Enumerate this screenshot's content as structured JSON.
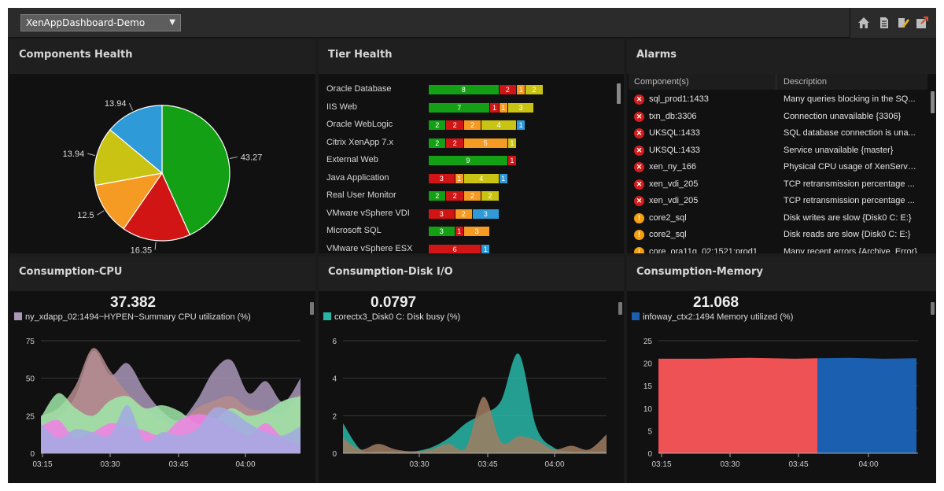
{
  "header": {
    "dashboard_select": "XenAppDashboard-Demo"
  },
  "toolbar": {
    "icons": [
      "home-icon",
      "document-icon",
      "edit-icon",
      "export-icon"
    ]
  },
  "components_health": {
    "title": "Components Health",
    "chart_data": {
      "type": "pie",
      "slices": [
        {
          "value": 43.27,
          "label": "43.27",
          "color": "#14a014"
        },
        {
          "value": 16.35,
          "label": "16.35",
          "color": "#d11414"
        },
        {
          "value": 12.5,
          "label": "12.5",
          "color": "#f59a22"
        },
        {
          "value": 13.94,
          "label": "13.94",
          "color": "#c9c414"
        },
        {
          "value": 13.94,
          "label": "13.94",
          "color": "#2f9ad8"
        }
      ]
    }
  },
  "tier_health": {
    "title": "Tier Health",
    "colors": {
      "green": "#14a014",
      "red": "#d11414",
      "orange": "#f59a22",
      "yellow": "#c9c414",
      "blue": "#2f9ad8"
    },
    "chart_data": {
      "type": "bar",
      "stacked": true,
      "categories": [
        "Oracle Database",
        "IIS Web",
        "Oracle WebLogic",
        "Citrix XenApp 7.x",
        "External Web",
        "Java Application",
        "Real User Monitor",
        "VMware vSphere VDI",
        "Microsoft SQL",
        "VMware vSphere ESX"
      ],
      "rows": [
        [
          [
            "green",
            8
          ],
          [
            "red",
            2
          ],
          [
            "orange",
            1
          ],
          [
            "yellow",
            2
          ]
        ],
        [
          [
            "green",
            7
          ],
          [
            "red",
            1
          ],
          [
            "orange",
            1
          ],
          [
            "yellow",
            3
          ]
        ],
        [
          [
            "green",
            2
          ],
          [
            "red",
            2
          ],
          [
            "orange",
            2
          ],
          [
            "yellow",
            4
          ],
          [
            "blue",
            1
          ]
        ],
        [
          [
            "green",
            2
          ],
          [
            "red",
            2
          ],
          [
            "orange",
            5
          ],
          [
            "yellow",
            1
          ]
        ],
        [
          [
            "green",
            9
          ],
          [
            "red",
            1
          ]
        ],
        [
          [
            "red",
            3
          ],
          [
            "orange",
            1
          ],
          [
            "yellow",
            4
          ],
          [
            "blue",
            1
          ]
        ],
        [
          [
            "green",
            2
          ],
          [
            "red",
            2
          ],
          [
            "orange",
            2
          ],
          [
            "yellow",
            2
          ]
        ],
        [
          [
            "red",
            3
          ],
          [
            "orange",
            2
          ],
          [
            "blue",
            3
          ]
        ],
        [
          [
            "green",
            3
          ],
          [
            "red",
            1
          ],
          [
            "orange",
            3
          ]
        ],
        [
          [
            "red",
            6
          ],
          [
            "blue",
            1
          ]
        ]
      ]
    }
  },
  "alarms": {
    "title": "Alarms",
    "columns": [
      "Component(s)",
      "Description"
    ],
    "rows": [
      {
        "severity": "critical",
        "component": "sql_prod1:1433",
        "description": "Many queries blocking in the SQ..."
      },
      {
        "severity": "critical",
        "component": "txn_db:3306",
        "description": "Connection unavailable {3306}"
      },
      {
        "severity": "critical",
        "component": "UKSQL:1433",
        "description": "SQL database connection is una..."
      },
      {
        "severity": "critical",
        "component": "UKSQL:1433",
        "description": "Service unavailable {master}"
      },
      {
        "severity": "critical",
        "component": "xen_ny_166",
        "description": "Physical CPU usage of XenServer..."
      },
      {
        "severity": "critical",
        "component": "xen_vdi_205",
        "description": "TCP retransmission percentage ..."
      },
      {
        "severity": "critical",
        "component": "xen_vdi_205",
        "description": "TCP retransmission percentage ..."
      },
      {
        "severity": "warning",
        "component": "core2_sql",
        "description": "Disk writes are slow {Disk0 C: E:}"
      },
      {
        "severity": "warning",
        "component": "core2_sql",
        "description": "Disk reads are slow {Disk0 C: E:}"
      },
      {
        "severity": "warning",
        "component": "core_ora11g_02:1521:prod1",
        "description": "Many recent errors {Archive_Error}"
      }
    ],
    "severity_colors": {
      "critical": "#d21d1d",
      "warning": "#f5a10d"
    }
  },
  "cpu": {
    "title": "Consumption-CPU",
    "current_value": "37.382",
    "legend": "ny_xdapp_02:1494~HYPEN~Summary CPU utilization (%)",
    "legend_color": "#a996b8",
    "chart_data": {
      "type": "area",
      "x_ticks": [
        "03:15",
        "03:30",
        "03:45",
        "04:00"
      ],
      "y_ticks": [
        "0",
        "25",
        "50",
        "75"
      ],
      "ylim": [
        0,
        75
      ],
      "series": [
        {
          "name": "ny_xdapp_02:1494~HYPEN~Summary CPU utilization (%)",
          "color": "#a996b8",
          "values": [
            20,
            24,
            38,
            68,
            52,
            60,
            42,
            28,
            22,
            35,
            55,
            62,
            40,
            48,
            34,
            50
          ]
        },
        {
          "color": "#b68c8c",
          "values": [
            25,
            30,
            45,
            70,
            55,
            40,
            30,
            22,
            20,
            30,
            35,
            38,
            30,
            28,
            26,
            40
          ]
        },
        {
          "color": "#9fe8a8",
          "values": [
            24,
            40,
            30,
            25,
            35,
            38,
            30,
            32,
            28,
            20,
            22,
            30,
            25,
            28,
            35,
            38
          ]
        },
        {
          "color": "#f27ee8",
          "values": [
            18,
            22,
            10,
            14,
            20,
            18,
            15,
            12,
            22,
            26,
            24,
            18,
            12,
            20,
            10,
            6
          ]
        },
        {
          "color": "#a3a9e4",
          "values": [
            20,
            10,
            16,
            14,
            12,
            32,
            8,
            14,
            12,
            16,
            30,
            28,
            20,
            14,
            12,
            18
          ]
        }
      ]
    }
  },
  "disk": {
    "title": "Consumption-Disk I/O",
    "current_value": "0.0797",
    "legend": "corectx3_Disk0 C: Disk busy (%)",
    "legend_color": "#27b7a7",
    "chart_data": {
      "type": "area",
      "x_ticks": [
        "03:30",
        "03:45",
        "04:00"
      ],
      "y_ticks": [
        "0",
        "2",
        "4",
        "6"
      ],
      "ylim": [
        0,
        6
      ],
      "series": [
        {
          "name": "corectx3_Disk0 C: Disk busy (%)",
          "color": "#27b7a7",
          "values": [
            1.6,
            0.2,
            0.1,
            0.1,
            0.1,
            0.3,
            0.8,
            1.6,
            2.1,
            2.8,
            5.3,
            1.4,
            0.3,
            0.1,
            0.1,
            0.1
          ]
        },
        {
          "color": "#a07d62",
          "values": [
            0.8,
            0.2,
            0.5,
            0.2,
            0.1,
            0.2,
            0.5,
            0.3,
            3.0,
            0.6,
            0.9,
            0.7,
            0.2,
            0.4,
            0.2,
            1.0
          ]
        }
      ]
    }
  },
  "memory": {
    "title": "Consumption-Memory",
    "current_value": "21.068",
    "legend": "infoway_ctx2:1494 Memory utilized (%)",
    "legend_color": "#1a5fb0",
    "chart_data": {
      "type": "area",
      "x_ticks": [
        "03:15",
        "03:30",
        "03:45",
        "04:00"
      ],
      "y_ticks": [
        "0",
        "5",
        "10",
        "15",
        "20",
        "25"
      ],
      "ylim": [
        0,
        25
      ],
      "series": [
        {
          "color": "#ef5254",
          "values": [
            21.0,
            21.0,
            21.0,
            21.1,
            21.2,
            21.1,
            21.0,
            21.1
          ]
        },
        {
          "name": "infoway_ctx2:1494 Memory utilized (%)",
          "color": "#1a5fb0",
          "values": [
            21.1,
            21.2,
            21.0,
            21.1
          ]
        }
      ]
    }
  }
}
